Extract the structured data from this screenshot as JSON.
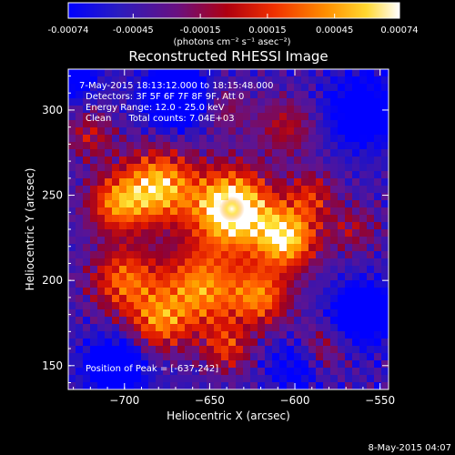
{
  "colorbar": {
    "ticks": [
      "-0.00074",
      "-0.00045",
      "-0.00015",
      "0.00015",
      "0.00045",
      "0.00074"
    ],
    "tick_values": [
      -0.00074,
      -0.00045,
      -0.00015,
      0.00015,
      0.00045,
      0.00074
    ],
    "range": [
      -0.00074,
      0.00074
    ],
    "unit_label": "(photons cm⁻² s⁻¹ asec⁻²)",
    "colormap": [
      "#0000ff",
      "#3a1aa0",
      "#7a0f6a",
      "#c80000",
      "#ff4a00",
      "#ff9a00",
      "#ffe030",
      "#ffffff"
    ]
  },
  "chart_data": {
    "type": "heatmap",
    "title": "Reconstructed RHESSI Image",
    "xlabel": "Heliocentric X (arcsec)",
    "ylabel": "Heliocentric Y (arcsec)",
    "xlim": [
      -733,
      -545
    ],
    "ylim": [
      136,
      324
    ],
    "x_ticks": [
      -700,
      -650,
      -600,
      -550
    ],
    "x_tick_labels": [
      "−700",
      "−650",
      "−600",
      "−550"
    ],
    "y_ticks": [
      150,
      200,
      250,
      300
    ],
    "y_tick_labels": [
      "150",
      "200",
      "250",
      "300"
    ],
    "annotations": [
      "7-May-2015 18:13:12.000 to 18:15:48.000",
      "Detectors: 3F 5F 6F 7F 8F 9F, Att 0",
      "Energy Range: 12.0 - 25.0 keV",
      "Clean      Total counts: 7.04E+03"
    ],
    "peak_label": "Position of Peak = [-637,242]",
    "peak": [
      -637,
      242
    ]
  },
  "footer": {
    "date": "8-May-2015 04:07"
  }
}
